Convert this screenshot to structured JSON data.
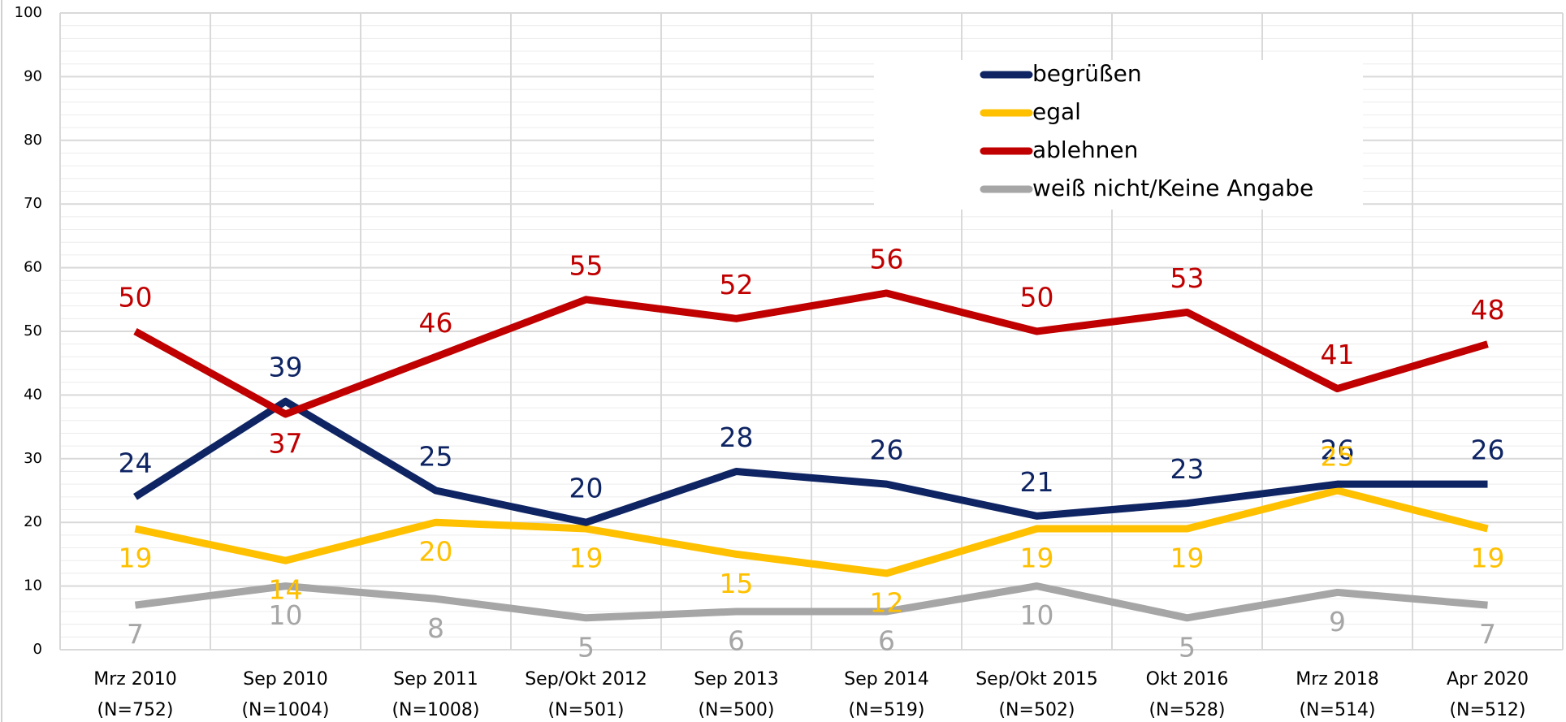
{
  "chart_data": {
    "type": "line",
    "categories": [
      [
        "Mrz 2010",
        "(N=752)"
      ],
      [
        "Sep 2010",
        "(N=1004)"
      ],
      [
        "Sep 2011",
        "(N=1008)"
      ],
      [
        "Sep/Okt 2012",
        "(N=501)"
      ],
      [
        "Sep 2013",
        "(N=500)"
      ],
      [
        "Sep 2014",
        "(N=519)"
      ],
      [
        "Sep/Okt 2015",
        "(N=502)"
      ],
      [
        "Okt 2016",
        "(N=528)"
      ],
      [
        "Mrz 2018",
        "(N=514)"
      ],
      [
        "Apr 2020",
        "(N=512)"
      ]
    ],
    "series": [
      {
        "name": "begrüßen",
        "color": "#0e2463",
        "values": [
          24,
          39,
          25,
          20,
          28,
          26,
          21,
          23,
          26,
          26
        ]
      },
      {
        "name": "egal",
        "color": "#ffc000",
        "values": [
          19,
          14,
          20,
          19,
          15,
          12,
          19,
          19,
          25,
          19
        ]
      },
      {
        "name": "ablehnen",
        "color": "#c00000",
        "values": [
          50,
          37,
          46,
          55,
          52,
          56,
          50,
          53,
          41,
          48
        ]
      },
      {
        "name": "weiß nicht/Keine Angabe",
        "color": "#a6a6a6",
        "values": [
          7,
          10,
          8,
          5,
          6,
          6,
          10,
          5,
          9,
          7
        ]
      }
    ],
    "ylim": [
      0,
      100
    ],
    "yticks": [
      0,
      10,
      20,
      30,
      40,
      50,
      60,
      70,
      80,
      90,
      100
    ],
    "grid": true,
    "yminor_step": 2,
    "legend": "upper right"
  }
}
